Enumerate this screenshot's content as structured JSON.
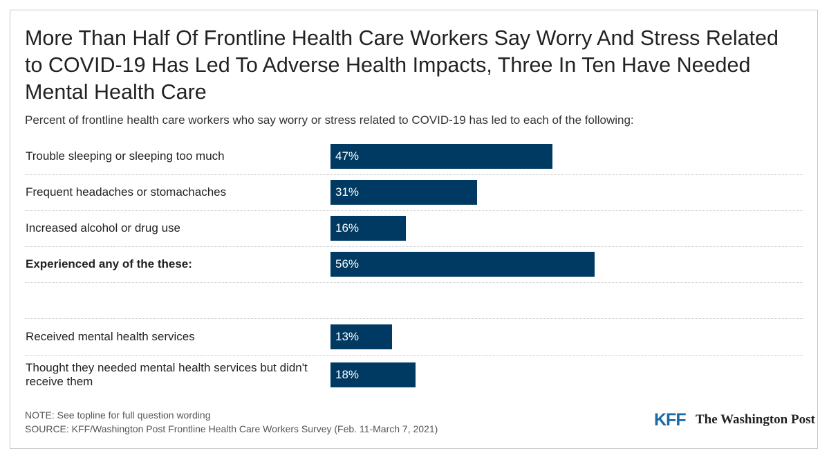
{
  "chart_data": {
    "type": "bar",
    "title": "More Than Half Of Frontline Health Care Workers Say Worry And Stress Related to COVID-19 Has Led To Adverse Health Impacts, Three In Ten Have Needed Mental Health Care",
    "subtitle": "Percent of frontline health care workers who say worry or stress related to COVID-19 has led to each of the following:",
    "categories": [
      "Trouble sleeping or sleeping too much",
      "Frequent headaches or stomachaches",
      "Increased alcohol or drug use",
      "Experienced any of the these:",
      null,
      "Received mental health services",
      "Thought they needed mental health services but didn't receive them"
    ],
    "values": [
      47,
      31,
      16,
      56,
      null,
      13,
      18
    ],
    "value_labels": [
      "47%",
      "31%",
      "16%",
      "56%",
      null,
      "13%",
      "18%"
    ],
    "color": "#003a63",
    "note": "NOTE: See topline for full question wording",
    "source": "SOURCE: KFF/Washington Post Frontline Health Care Workers Survey (Feb. 11-March 7, 2021)",
    "logos": [
      "KFF",
      "The Washington Post"
    ]
  }
}
